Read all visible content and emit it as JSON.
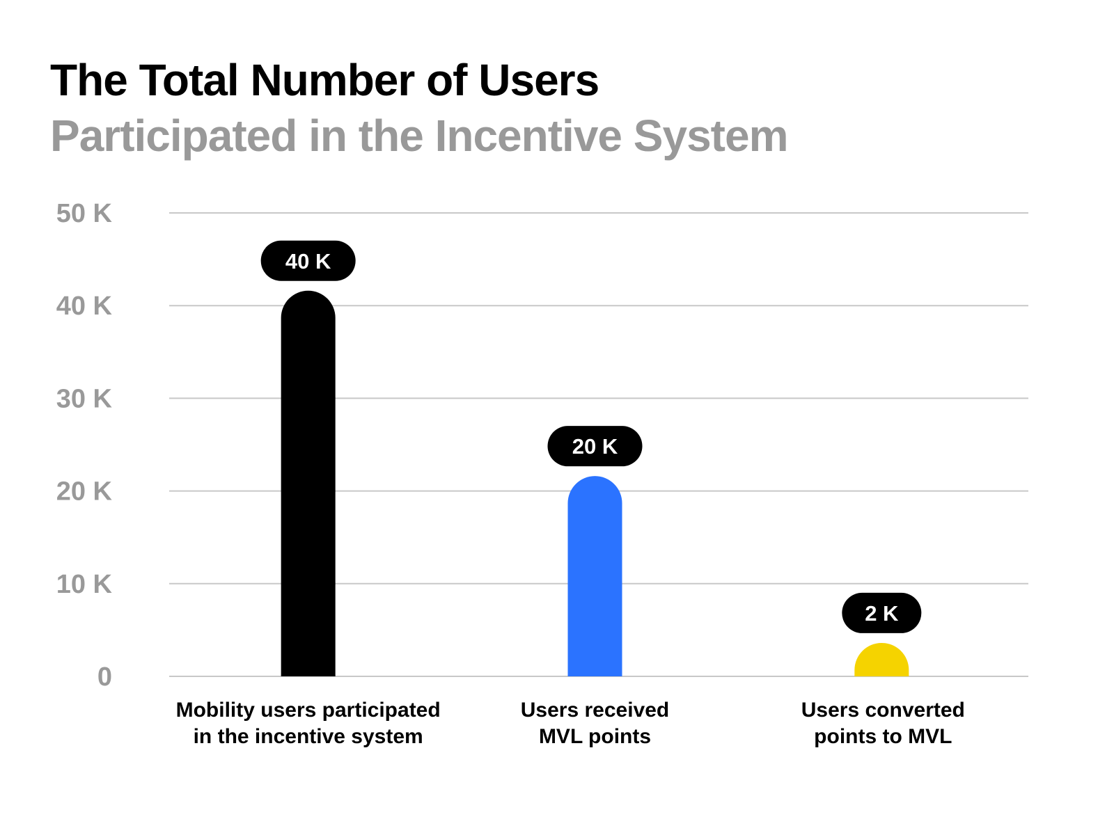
{
  "header": {
    "title": "The Total Number of Users",
    "subtitle": "Participated in the Incentive System"
  },
  "chart_data": {
    "type": "bar",
    "title": "The Total Number of Users",
    "subtitle": "Participated in the Incentive System",
    "xlabel": "",
    "ylabel": "",
    "ylim": [
      0,
      50000
    ],
    "yticks": [
      0,
      10000,
      20000,
      30000,
      40000,
      50000
    ],
    "ytick_labels": [
      "0",
      "10 K",
      "20 K",
      "30 K",
      "40 K",
      "50 K"
    ],
    "grid": true,
    "categories": [
      [
        "Mobility users participated",
        "in the incentive system"
      ],
      [
        "Users received",
        "MVL points"
      ],
      [
        "Users converted",
        "points to MVL"
      ]
    ],
    "values": [
      40000,
      20000,
      2000
    ],
    "data_labels": [
      "40 K",
      "20 K",
      "2 K"
    ],
    "colors": [
      "#000000",
      "#2B73FF",
      "#F5D300"
    ],
    "legend": "none"
  }
}
